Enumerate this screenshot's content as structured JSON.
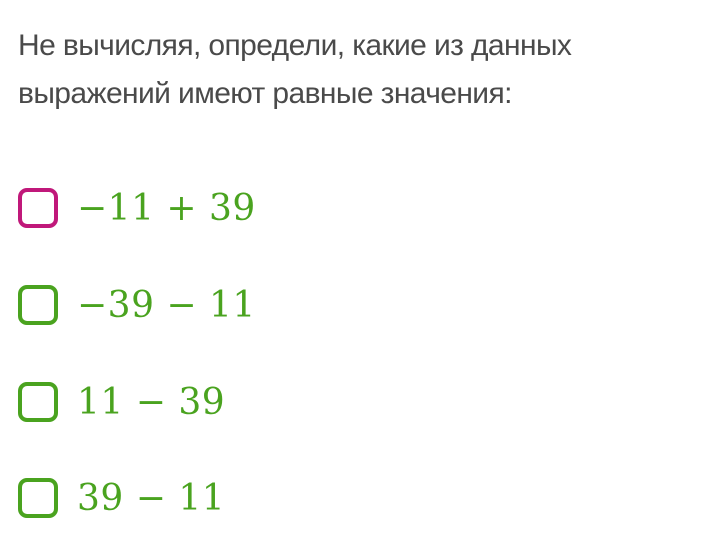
{
  "question": "Не вычисляя, определи, какие из данных выражений имеют равные значения:",
  "colors": {
    "accent_focus": "#c0187a",
    "option_green": "#4aa31f",
    "text": "#4a4a4a"
  },
  "options": [
    {
      "expression": "−11 + 39",
      "checked": false,
      "focused": true
    },
    {
      "expression": "−39 − 11",
      "checked": false,
      "focused": false
    },
    {
      "expression": "11 − 39",
      "checked": false,
      "focused": false
    },
    {
      "expression": "39 − 11",
      "checked": false,
      "focused": false
    }
  ]
}
